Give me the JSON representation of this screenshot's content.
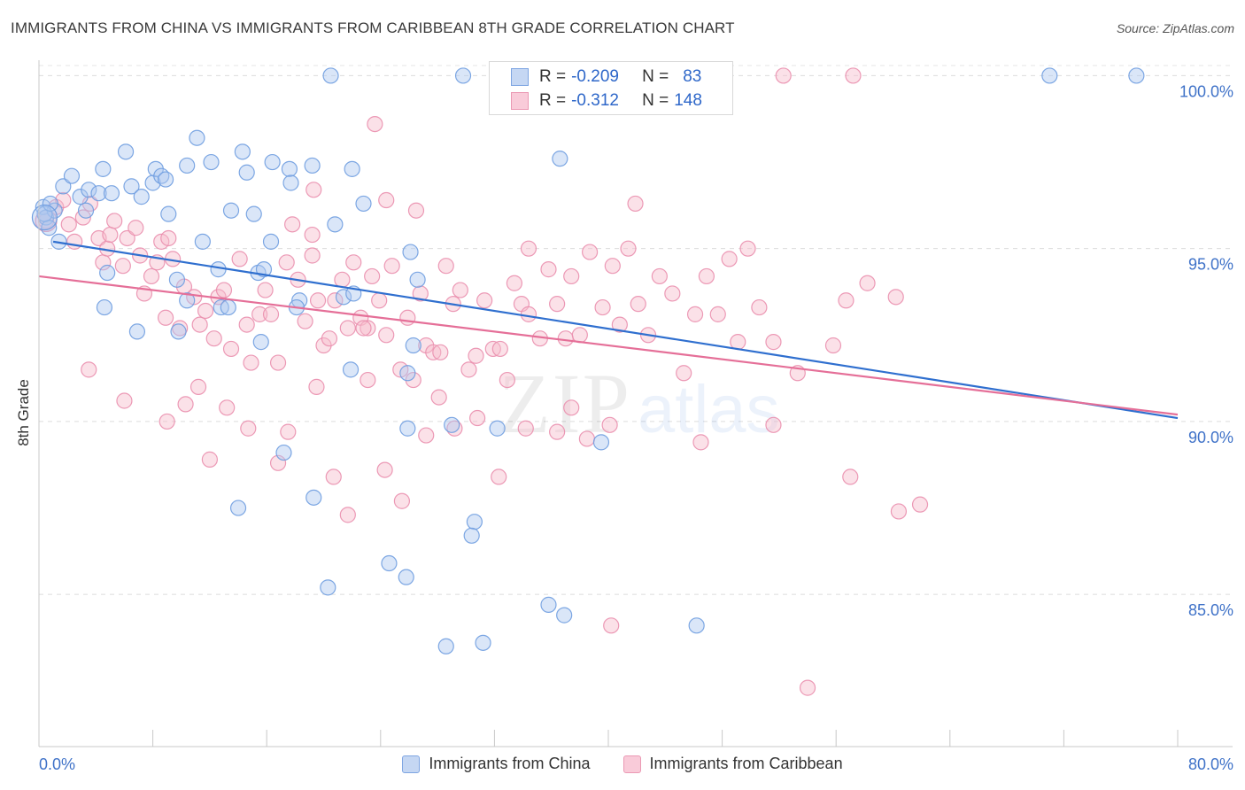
{
  "title": "IMMIGRANTS FROM CHINA VS IMMIGRANTS FROM CARIBBEAN 8TH GRADE CORRELATION CHART",
  "source": "Source: ZipAtlas.com",
  "watermark": {
    "zip": "ZIP",
    "atlas": "atlas"
  },
  "colors": {
    "blue": "#6f9de0",
    "blue_fill": "#aec8f0",
    "blue_line": "#2f6fcf",
    "pink": "#ea8fae",
    "pink_fill": "#f6bccd",
    "pink_line": "#e56f98",
    "axis_label": "#3f72c8",
    "grid": "#dcdcdc"
  },
  "legend": {
    "r_label": "R =",
    "n_label": "N =",
    "series": [
      {
        "r": "-0.209",
        "n": "83"
      },
      {
        "r": "-0.312",
        "n": "148"
      }
    ]
  },
  "chart_data": {
    "type": "scatter",
    "ylabel": "8th Grade",
    "xlim": [
      0,
      80
    ],
    "ylim": [
      80.6,
      100.6
    ],
    "x_tick_labels": [
      "0.0%",
      "80.0%"
    ],
    "y_ticks": [
      85,
      90,
      95,
      100
    ],
    "y_tick_labels": [
      "85.0%",
      "90.0%",
      "95.0%",
      "100.0%"
    ],
    "grid": true,
    "legend_position": "bottom",
    "series": [
      {
        "name": "Immigrants from China",
        "color": "#6f9de0",
        "trend": {
          "x": [
            1,
            80
          ],
          "y": [
            95.2,
            90.1
          ]
        },
        "points": [
          [
            0.3,
            96.2
          ],
          [
            0.5,
            95.9
          ],
          [
            0.7,
            95.6
          ],
          [
            1.1,
            96.1
          ],
          [
            1.4,
            95.2
          ],
          [
            1.7,
            96.8
          ],
          [
            2.3,
            97.1
          ],
          [
            2.9,
            96.5
          ],
          [
            3.5,
            96.7
          ],
          [
            3.3,
            96.1
          ],
          [
            4.2,
            96.6
          ],
          [
            4.5,
            97.3
          ],
          [
            5.1,
            96.6
          ],
          [
            6.1,
            97.8
          ],
          [
            6.5,
            96.8
          ],
          [
            7.2,
            96.5
          ],
          [
            8.0,
            96.9
          ],
          [
            8.2,
            97.3
          ],
          [
            8.6,
            97.1
          ],
          [
            8.9,
            97.0
          ],
          [
            9.1,
            96.0
          ],
          [
            10.4,
            97.4
          ],
          [
            11.1,
            98.2
          ],
          [
            12.1,
            97.5
          ],
          [
            11.5,
            95.2
          ],
          [
            13.5,
            96.1
          ],
          [
            14.3,
            97.8
          ],
          [
            14.6,
            97.2
          ],
          [
            15.1,
            96.0
          ],
          [
            16.3,
            95.2
          ],
          [
            16.4,
            97.5
          ],
          [
            17.6,
            97.3
          ],
          [
            17.7,
            96.9
          ],
          [
            19.2,
            97.4
          ],
          [
            20.8,
            95.7
          ],
          [
            22.0,
            97.3
          ],
          [
            22.8,
            96.3
          ],
          [
            4.8,
            94.3
          ],
          [
            4.6,
            93.3
          ],
          [
            6.9,
            92.6
          ],
          [
            9.7,
            94.1
          ],
          [
            10.4,
            93.5
          ],
          [
            9.8,
            92.6
          ],
          [
            12.6,
            94.4
          ],
          [
            12.8,
            93.3
          ],
          [
            13.3,
            93.3
          ],
          [
            15.4,
            94.3
          ],
          [
            15.8,
            94.4
          ],
          [
            15.6,
            92.3
          ],
          [
            18.3,
            93.5
          ],
          [
            18.1,
            93.3
          ],
          [
            21.4,
            93.6
          ],
          [
            22.1,
            93.7
          ],
          [
            21.9,
            91.5
          ],
          [
            26.1,
            94.9
          ],
          [
            26.6,
            94.1
          ],
          [
            26.3,
            92.2
          ],
          [
            25.9,
            89.8
          ],
          [
            29.0,
            89.9
          ],
          [
            32.2,
            89.8
          ],
          [
            25.9,
            91.4
          ],
          [
            14.0,
            87.5
          ],
          [
            17.2,
            89.1
          ],
          [
            19.3,
            87.8
          ],
          [
            20.3,
            85.2
          ],
          [
            24.6,
            85.9
          ],
          [
            25.8,
            85.5
          ],
          [
            28.6,
            83.5
          ],
          [
            30.6,
            87.1
          ],
          [
            30.4,
            86.7
          ],
          [
            31.2,
            83.6
          ],
          [
            35.8,
            84.7
          ],
          [
            36.9,
            84.4
          ],
          [
            39.5,
            89.4
          ],
          [
            46.2,
            84.1
          ],
          [
            20.5,
            100.0
          ],
          [
            29.8,
            100.0
          ],
          [
            34.0,
            100.0
          ],
          [
            71.0,
            100.0
          ],
          [
            77.1,
            100.0
          ],
          [
            36.6,
            97.6
          ],
          [
            0.4,
            96.0
          ],
          [
            0.8,
            96.3
          ]
        ]
      },
      {
        "name": "Immigrants from Caribbean",
        "color": "#ea8fae",
        "trend": {
          "x": [
            0,
            80
          ],
          "y": [
            94.2,
            90.2
          ]
        },
        "points": [
          [
            0.5,
            95.8
          ],
          [
            1.2,
            96.2
          ],
          [
            1.7,
            96.4
          ],
          [
            2.1,
            95.7
          ],
          [
            2.5,
            95.2
          ],
          [
            3.1,
            95.9
          ],
          [
            3.6,
            96.3
          ],
          [
            4.2,
            95.3
          ],
          [
            4.5,
            94.6
          ],
          [
            4.8,
            95.0
          ],
          [
            5.0,
            95.4
          ],
          [
            5.3,
            95.8
          ],
          [
            5.9,
            94.5
          ],
          [
            6.2,
            95.3
          ],
          [
            6.8,
            95.6
          ],
          [
            7.1,
            94.8
          ],
          [
            7.4,
            93.7
          ],
          [
            7.9,
            94.2
          ],
          [
            8.3,
            94.6
          ],
          [
            8.6,
            95.2
          ],
          [
            9.1,
            95.3
          ],
          [
            9.4,
            94.7
          ],
          [
            8.9,
            93.0
          ],
          [
            9.9,
            92.7
          ],
          [
            10.2,
            93.9
          ],
          [
            10.9,
            93.6
          ],
          [
            11.3,
            92.8
          ],
          [
            11.7,
            93.2
          ],
          [
            12.3,
            92.4
          ],
          [
            12.6,
            93.6
          ],
          [
            13.0,
            93.8
          ],
          [
            13.5,
            92.1
          ],
          [
            14.1,
            94.7
          ],
          [
            14.6,
            92.8
          ],
          [
            14.9,
            91.7
          ],
          [
            15.5,
            93.1
          ],
          [
            15.9,
            93.8
          ],
          [
            16.3,
            93.1
          ],
          [
            16.8,
            91.7
          ],
          [
            17.4,
            94.6
          ],
          [
            17.8,
            95.7
          ],
          [
            18.2,
            94.1
          ],
          [
            18.7,
            92.9
          ],
          [
            19.2,
            94.8
          ],
          [
            19.6,
            93.5
          ],
          [
            20.0,
            92.2
          ],
          [
            20.4,
            92.4
          ],
          [
            20.8,
            93.5
          ],
          [
            21.3,
            94.1
          ],
          [
            21.7,
            92.7
          ],
          [
            22.1,
            94.6
          ],
          [
            22.6,
            93.0
          ],
          [
            23.1,
            92.7
          ],
          [
            23.4,
            94.2
          ],
          [
            23.9,
            93.5
          ],
          [
            24.4,
            92.5
          ],
          [
            24.8,
            94.5
          ],
          [
            25.4,
            91.5
          ],
          [
            25.9,
            93.0
          ],
          [
            26.3,
            91.2
          ],
          [
            26.8,
            93.7
          ],
          [
            27.2,
            92.2
          ],
          [
            27.7,
            92.0
          ],
          [
            28.2,
            92.0
          ],
          [
            28.6,
            94.5
          ],
          [
            29.1,
            93.4
          ],
          [
            29.6,
            93.8
          ],
          [
            30.2,
            91.5
          ],
          [
            30.7,
            91.9
          ],
          [
            31.3,
            93.5
          ],
          [
            31.9,
            92.1
          ],
          [
            32.4,
            92.1
          ],
          [
            32.9,
            91.2
          ],
          [
            33.4,
            94.0
          ],
          [
            33.9,
            93.4
          ],
          [
            34.4,
            95.0
          ],
          [
            35.2,
            92.4
          ],
          [
            35.8,
            94.4
          ],
          [
            36.4,
            93.4
          ],
          [
            37.0,
            92.4
          ],
          [
            37.4,
            94.2
          ],
          [
            38.0,
            92.5
          ],
          [
            38.7,
            94.9
          ],
          [
            39.6,
            93.3
          ],
          [
            40.3,
            94.5
          ],
          [
            40.8,
            92.8
          ],
          [
            41.4,
            95.0
          ],
          [
            42.1,
            93.4
          ],
          [
            42.8,
            92.5
          ],
          [
            43.6,
            94.2
          ],
          [
            44.5,
            93.7
          ],
          [
            45.3,
            91.4
          ],
          [
            46.1,
            93.1
          ],
          [
            46.9,
            94.2
          ],
          [
            47.7,
            93.1
          ],
          [
            48.5,
            94.7
          ],
          [
            49.1,
            92.3
          ],
          [
            49.8,
            95.0
          ],
          [
            50.6,
            93.3
          ],
          [
            51.6,
            92.3
          ],
          [
            53.3,
            91.4
          ],
          [
            55.8,
            92.2
          ],
          [
            56.7,
            93.5
          ],
          [
            58.2,
            94.0
          ],
          [
            60.2,
            93.6
          ],
          [
            3.5,
            91.5
          ],
          [
            6.0,
            90.6
          ],
          [
            9.0,
            90.0
          ],
          [
            10.3,
            90.5
          ],
          [
            11.2,
            91.0
          ],
          [
            12.0,
            88.9
          ],
          [
            13.2,
            90.4
          ],
          [
            14.7,
            89.8
          ],
          [
            16.8,
            88.8
          ],
          [
            17.5,
            89.7
          ],
          [
            19.5,
            91.0
          ],
          [
            20.7,
            88.4
          ],
          [
            21.7,
            87.3
          ],
          [
            23.1,
            91.2
          ],
          [
            24.3,
            88.6
          ],
          [
            25.5,
            87.7
          ],
          [
            27.2,
            89.6
          ],
          [
            28.1,
            90.7
          ],
          [
            29.2,
            89.8
          ],
          [
            30.8,
            90.1
          ],
          [
            32.3,
            88.4
          ],
          [
            34.2,
            89.8
          ],
          [
            36.4,
            89.7
          ],
          [
            37.4,
            90.4
          ],
          [
            40.1,
            89.9
          ],
          [
            46.5,
            89.4
          ],
          [
            51.6,
            89.9
          ],
          [
            57.0,
            88.4
          ],
          [
            60.4,
            87.4
          ],
          [
            61.9,
            87.6
          ],
          [
            38.5,
            89.5
          ],
          [
            40.2,
            84.1
          ],
          [
            54.0,
            82.3
          ],
          [
            52.3,
            100.0
          ],
          [
            57.2,
            100.0
          ],
          [
            23.6,
            98.6
          ],
          [
            41.9,
            96.3
          ],
          [
            24.4,
            96.4
          ],
          [
            26.5,
            96.1
          ],
          [
            19.3,
            96.7
          ],
          [
            19.2,
            95.4
          ],
          [
            34.4,
            93.1
          ],
          [
            22.8,
            92.7
          ]
        ]
      }
    ]
  }
}
